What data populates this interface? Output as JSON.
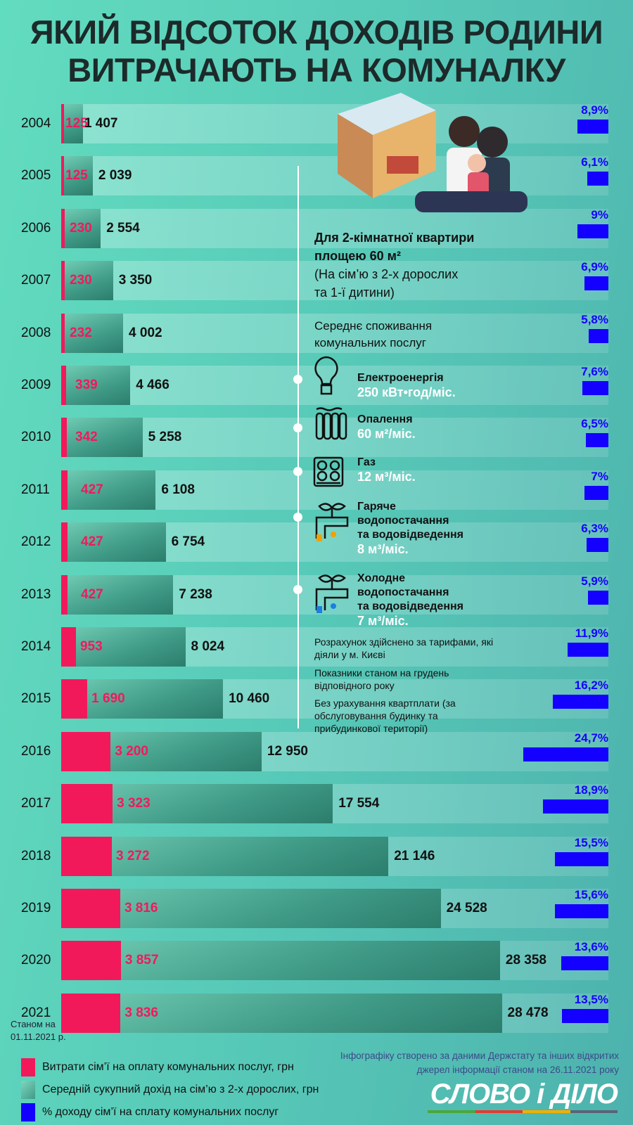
{
  "title_lines": [
    "ЯКИЙ ВІДСОТОК ДОХОДІВ РОДИНИ",
    "ВИТРАЧАЮТЬ НА КОМУНАЛКУ"
  ],
  "colors": {
    "utility_spend": "#f2195b",
    "income": "#3f9a86",
    "percent": "#1400ff"
  },
  "chart_data": {
    "type": "bar",
    "categories": [
      "2004",
      "2005",
      "2006",
      "2007",
      "2008",
      "2009",
      "2010",
      "2011",
      "2012",
      "2013",
      "2014",
      "2015",
      "2016",
      "2017",
      "2018",
      "2019",
      "2020",
      "2021"
    ],
    "series": [
      {
        "name": "Витрати сім’ї на оплату комунальних послуг, грн",
        "values": [
          125,
          125,
          230,
          230,
          232,
          339,
          342,
          427,
          427,
          427,
          953,
          1690,
          3200,
          3323,
          3272,
          3816,
          3857,
          3836
        ],
        "labels": [
          "125",
          "125",
          "230",
          "230",
          "232",
          "339",
          "342",
          "427",
          "427",
          "427",
          "953",
          "1 690",
          "3 200",
          "3 323",
          "3 272",
          "3 816",
          "3 857",
          "3 836"
        ]
      },
      {
        "name": "Середній сукупний дохід на сім’ю з 2-х дорослих, грн",
        "values": [
          1407,
          2039,
          2554,
          3350,
          4002,
          4466,
          5258,
          6108,
          6754,
          7238,
          8024,
          10460,
          12950,
          17554,
          21146,
          24528,
          28358,
          28478
        ],
        "labels": [
          "1 407",
          "2 039",
          "2 554",
          "3 350",
          "4 002",
          "4 466",
          "5 258",
          "6 108",
          "6 754",
          "7 238",
          "8 024",
          "10 460",
          "12 950",
          "17 554",
          "21 146",
          "24 528",
          "28 358",
          "28 478"
        ]
      },
      {
        "name": "% доходу сім’ї на сплату комунальних послуг",
        "values": [
          8.9,
          6.1,
          9,
          6.9,
          5.8,
          7.6,
          6.5,
          7,
          6.3,
          5.9,
          11.9,
          16.2,
          24.7,
          18.9,
          15.5,
          15.6,
          13.6,
          13.5
        ],
        "labels": [
          "8,9%",
          "6,1%",
          "9%",
          "6,9%",
          "5,8%",
          "7,6%",
          "6,5%",
          "7%",
          "6,3%",
          "5,9%",
          "11,9%",
          "16,2%",
          "24,7%",
          "18,9%",
          "15,5%",
          "15,6%",
          "13,6%",
          "13,5%"
        ]
      }
    ],
    "orientation": "horizontal",
    "legend": "bottom-left"
  },
  "as_of_note": [
    "Станом на",
    "01.11.2021 р."
  ],
  "panel": {
    "heading1": "Для 2-кімнатної квартири",
    "heading2": "площею 60 м²",
    "sub1": "(На сім’ю з 2-х дорослих",
    "sub2": "та 1-ї дитини)",
    "avg1": "Середнє споживання",
    "avg2": "комунальних послуг",
    "services": [
      {
        "icon": "lightbulb-icon",
        "name": [
          "Електроенергія"
        ],
        "value": "250 кВт•год/міс."
      },
      {
        "icon": "radiator-icon",
        "name": [
          "Опалення"
        ],
        "value": "60 м²/міс."
      },
      {
        "icon": "stove-icon",
        "name": [
          "Газ"
        ],
        "value": "12 м³/міс."
      },
      {
        "icon": "hot-water-tap-icon",
        "name": [
          "Гаряче",
          "водопостачання",
          "та водовідведення"
        ],
        "value": "8 м³/міс."
      },
      {
        "icon": "cold-water-tap-icon",
        "name": [
          "Холодне",
          "водопостачання",
          "та водовідведення"
        ],
        "value": "7 м³/міс."
      }
    ],
    "notes": [
      "Розрахунок здійснено за тарифами, які діяли у м. Києві",
      "Показники станом на грудень відповідного року",
      "Без урахування квартплати (за обслуговування будинку та прибудинкової території)"
    ]
  },
  "legend": [
    "Витрати сім’ї на оплату комунальних послуг, грн",
    "Середній сукупний дохід на сім’ю з 2-х дорослих, грн",
    "% доходу сім’ї на сплату комунальних послуг"
  ],
  "source": [
    "Інфографіку створено за даними Держстату та інших відкритих",
    "джерел інформації станом на 26.11.2021 року"
  ],
  "logo": "СЛОВО і ДІЛО"
}
